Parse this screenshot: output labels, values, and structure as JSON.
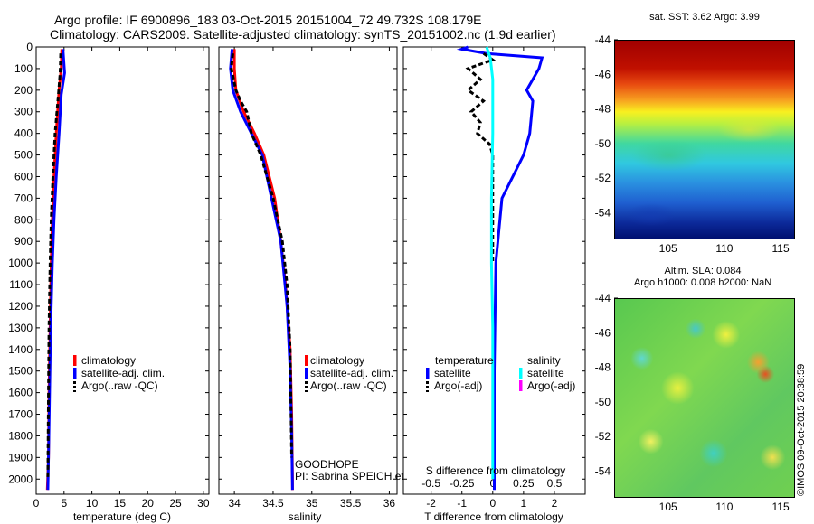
{
  "header": {
    "title_line1": "Argo profile: IF 6900896_183 03-Oct-2015 20151004_72 49.732S 108.179E",
    "title_line2": "Climatology: CARS2009. Satellite-adjusted climatology: synTS_20151002.nc (1.9d earlier)"
  },
  "colors": {
    "climatology": "#ff0000",
    "satellite": "#0000ff",
    "argo": "#000000",
    "satellite_salinity": "#00ffff",
    "argo_salinity_adj": "#ff00ff"
  },
  "chart_data": [
    {
      "type": "line",
      "panel": "temperature",
      "xlabel": "temperature (deg C)",
      "xlim": [
        0,
        31
      ],
      "xticks": [
        0,
        5,
        10,
        15,
        20,
        25,
        30
      ],
      "ylim": [
        2070,
        0
      ],
      "yticks": [
        0,
        100,
        200,
        300,
        400,
        500,
        600,
        700,
        800,
        900,
        1000,
        1100,
        1200,
        1300,
        1400,
        1500,
        1600,
        1700,
        1800,
        1900,
        2000
      ],
      "legend": [
        "climatology",
        "satellite-adj. clim.",
        "Argo(..raw -QC)"
      ],
      "series": [
        {
          "name": "climatology",
          "color_key": "climatology",
          "x": [
            4.6,
            4.5,
            4.1,
            3.6,
            3.2,
            2.9,
            2.7,
            2.5,
            2.3,
            2.2,
            2.0
          ],
          "y": [
            10,
            100,
            200,
            400,
            600,
            800,
            1000,
            1300,
            1600,
            1900,
            2050
          ]
        },
        {
          "name": "satellite-adj. clim.",
          "color_key": "satellite",
          "x": [
            4.8,
            5.1,
            4.5,
            4.1,
            3.6,
            3.2,
            2.9,
            2.6,
            2.4,
            2.2,
            2.1
          ],
          "y": [
            10,
            120,
            220,
            400,
            600,
            800,
            1000,
            1300,
            1600,
            1900,
            2050
          ]
        },
        {
          "name": "Argo(..raw -QC)",
          "color_key": "argo",
          "x": [
            4.4,
            4.3,
            4.0,
            3.4,
            3.0,
            2.7,
            2.5,
            2.3,
            2.2,
            2.1
          ],
          "y": [
            30,
            120,
            220,
            400,
            600,
            800,
            1000,
            1300,
            1600,
            2000
          ]
        }
      ]
    },
    {
      "type": "line",
      "panel": "salinity",
      "xlabel": "salinity",
      "xlim": [
        33.8,
        36.1
      ],
      "xticks": [
        34,
        34.5,
        35,
        35.5,
        36
      ],
      "ylim": [
        2070,
        0
      ],
      "legend": [
        "climatology",
        "satellite-adj. clim.",
        "Argo(..raw -QC)"
      ],
      "annotation": [
        "GOODHOPE",
        "PI: Sabrina SPEICH et Michel ARHAN"
      ],
      "series": [
        {
          "name": "climatology",
          "color_key": "climatology",
          "x": [
            34.0,
            34.0,
            34.02,
            34.12,
            34.26,
            34.38,
            34.52,
            34.6,
            34.66,
            34.72,
            34.74,
            34.75,
            34.75
          ],
          "y": [
            10,
            100,
            200,
            300,
            400,
            500,
            700,
            900,
            1100,
            1400,
            1700,
            2000,
            2050
          ]
        },
        {
          "name": "satellite-adj. clim.",
          "color_key": "satellite",
          "x": [
            33.97,
            33.95,
            33.98,
            34.08,
            34.22,
            34.36,
            34.48,
            34.6,
            34.68,
            34.72,
            34.74,
            34.75
          ],
          "y": [
            10,
            100,
            200,
            300,
            400,
            500,
            700,
            900,
            1200,
            1500,
            1800,
            2050
          ]
        },
        {
          "name": "Argo(..raw -QC)",
          "color_key": "argo",
          "x": [
            33.98,
            33.96,
            34.02,
            34.08,
            34.16,
            34.22,
            34.34,
            34.5,
            34.62,
            34.68,
            34.72,
            34.74
          ],
          "y": [
            30,
            100,
            200,
            250,
            300,
            400,
            500,
            700,
            900,
            1100,
            1400,
            1900
          ]
        }
      ]
    },
    {
      "type": "line",
      "panel": "difference",
      "xlabel": "T difference from climatology",
      "xlabel_top": "S difference from climatology",
      "xlim": [
        -2.9,
        3.0
      ],
      "xticks": [
        -2,
        -1,
        0,
        1,
        2
      ],
      "xlim_salinity": [
        -0.725,
        0.75
      ],
      "xticks_salinity": [
        -0.5,
        -0.25,
        0,
        0.25,
        0.5
      ],
      "ylim": [
        2070,
        0
      ],
      "legend_headers": [
        "temperature",
        "salinity"
      ],
      "legend": [
        {
          "group": "temperature",
          "label": "satellite",
          "color_key": "satellite"
        },
        {
          "group": "temperature",
          "label": "Argo(-adj)",
          "color_key": "argo"
        },
        {
          "group": "salinity",
          "label": "satellite",
          "color_key": "satellite_salinity"
        },
        {
          "group": "salinity",
          "label": "Argo(-adj)",
          "color_key": "argo_salinity_adj"
        }
      ],
      "series": [
        {
          "name": "T satellite",
          "color_key": "satellite",
          "x": [
            -0.8,
            -1.0,
            -0.2,
            1.6,
            1.5,
            1.1,
            1.3,
            1.2,
            1.0,
            0.3,
            0.1,
            0.05,
            0.05
          ],
          "y": [
            0,
            10,
            30,
            50,
            100,
            200,
            250,
            400,
            500,
            700,
            1000,
            1500,
            2050
          ]
        },
        {
          "name": "T Argo(-adj)",
          "color_key": "argo",
          "x": [
            -0.3,
            0.0,
            -0.8,
            -0.4,
            -0.8,
            -0.3,
            -0.7,
            -0.4,
            -0.5,
            -0.1,
            0.0,
            0.0,
            0.0
          ],
          "y": [
            30,
            60,
            100,
            150,
            200,
            250,
            300,
            350,
            400,
            450,
            500,
            700,
            1000
          ]
        },
        {
          "name": "S satellite",
          "color_key": "satellite_salinity",
          "x_salinity": [
            -0.05,
            -0.02,
            0.0,
            0.0,
            -0.01,
            -0.01,
            0.0,
            0.0,
            0.0
          ],
          "y": [
            0,
            50,
            150,
            400,
            700,
            1000,
            1300,
            1600,
            2000
          ]
        }
      ]
    },
    {
      "type": "heatmap",
      "panel": "sst_map",
      "title": "sat. SST: 3.62 Argo: 3.99",
      "xticks": [
        105,
        110,
        115
      ],
      "yticks": [
        -44,
        -46,
        -48,
        -50,
        -52,
        -54
      ],
      "xlim": [
        100.2,
        116.2
      ],
      "ylim": [
        -55.5,
        -44
      ]
    },
    {
      "type": "heatmap",
      "panel": "sla_map",
      "title": [
        "Altim. SLA: 0.084",
        "Argo h1000: 0.008 h2000: NaN"
      ],
      "xticks": [
        105,
        110,
        115
      ],
      "yticks": [
        -44,
        -46,
        -48,
        -50,
        -52,
        -54
      ],
      "xlim": [
        100.2,
        116.2
      ],
      "ylim": [
        -55.5,
        -44
      ]
    }
  ],
  "footer": {
    "copyright": "©IMOS 09-Oct-2015 20:38:59"
  }
}
